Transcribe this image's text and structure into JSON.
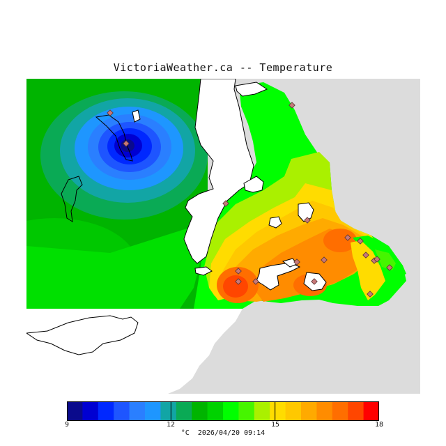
{
  "header": {
    "title": "VictoriaWeather.ca -- Temperature"
  },
  "legend": {
    "colors": [
      "#0a0a8c",
      "#0000d2",
      "#0028ff",
      "#1e55ff",
      "#2a7fff",
      "#1e96ff",
      "#12a5a5",
      "#0aaa55",
      "#00b400",
      "#00d200",
      "#00ff00",
      "#46f500",
      "#aaf000",
      "#ffdc00",
      "#ffc800",
      "#ffaa00",
      "#ff8c00",
      "#ff6e00",
      "#ff4600",
      "#ff0000"
    ],
    "ticks": [
      "9",
      "12",
      "15",
      "18"
    ],
    "unit": "°C",
    "timestamp": "2026/04/20 09:14"
  },
  "map": {
    "background_color": "#dcdcdc",
    "water_color": "#ffffff",
    "station_marker_color": "#c87878",
    "station_count": 18
  }
}
